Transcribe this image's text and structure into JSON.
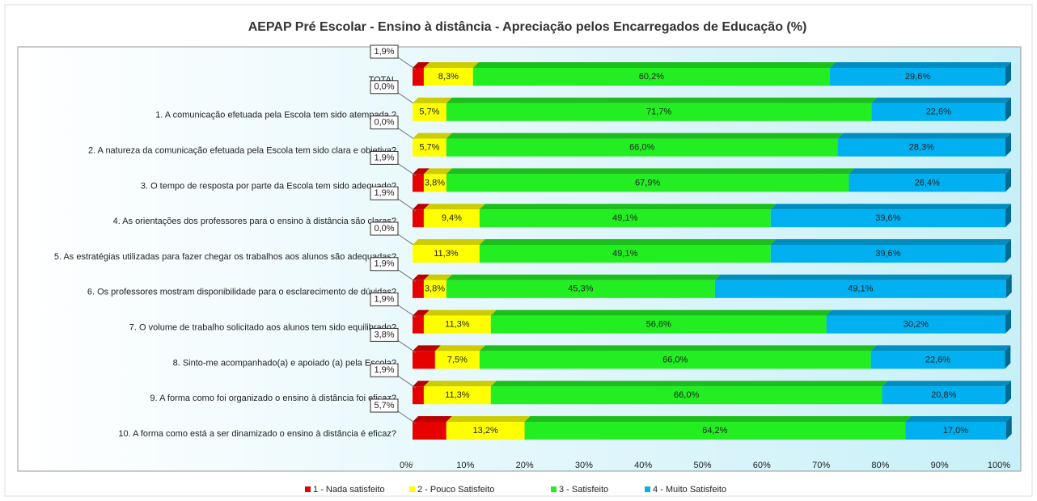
{
  "chart_data": {
    "type": "bar",
    "orientation": "horizontal",
    "stacked": true,
    "title": "AEPAP  Pré Escolar - Ensino à distância - Apreciação  pelos Encarregados de Educação (%)",
    "categories": [
      "TOTAL",
      "1. A comunicação efetuada pela Escola tem sido atempada.?",
      "2. A natureza da comunicação efetuada pela Escola tem sido clara e objetiva?",
      "3. O tempo de resposta por parte da Escola tem sido adequado?",
      "4. As orientações dos professores para o ensino à distância são claras?",
      "5. As estratégias utilizadas para fazer chegar os trabalhos aos alunos são adequadas?",
      "6. Os professores mostram disponibilidade para o esclarecimento de dúvidas?",
      "7. O volume de trabalho solicitado aos alunos tem sido equilibrado?",
      "8. Sinto-me acompanhado(a) e apoiado (a) pela Escola?",
      "9. A forma como foi organizado o ensino à distância foi eficaz?",
      "10. A forma como está a ser dinamizado o ensino à distância é eficaz?"
    ],
    "series": [
      {
        "name": "1 - Nada satisfeito",
        "color": "#e60000",
        "values": [
          1.9,
          0.0,
          0.0,
          1.9,
          1.9,
          0.0,
          1.9,
          1.9,
          3.8,
          1.9,
          5.7
        ],
        "value_labels": [
          "1,9%",
          "0,0%",
          "0,0%",
          "1,9%",
          "1,9%",
          "0,0%",
          "1,9%",
          "1,9%",
          "3,8%",
          "1,9%",
          "5,7%"
        ]
      },
      {
        "name": "2 - Pouco Satisfeito",
        "color": "#ffff00",
        "values": [
          8.3,
          5.7,
          5.7,
          3.8,
          9.4,
          11.3,
          3.8,
          11.3,
          7.5,
          11.3,
          13.2
        ],
        "value_labels": [
          "8,3%",
          "5,7%",
          "5,7%",
          "3,8%",
          "9,4%",
          "11,3%",
          "3,8%",
          "11,3%",
          "7,5%",
          "11,3%",
          "13,2%"
        ]
      },
      {
        "name": "3 - Satisfeito",
        "color": "#22ee22",
        "values": [
          60.2,
          71.7,
          66.0,
          67.9,
          49.1,
          49.1,
          45.3,
          56.6,
          66.0,
          66.0,
          64.2
        ],
        "value_labels": [
          "60,2%",
          "71,7%",
          "66,0%",
          "67,9%",
          "49,1%",
          "49,1%",
          "45,3%",
          "56,6%",
          "66,0%",
          "66,0%",
          "64,2%"
        ]
      },
      {
        "name": "4 - Muito Satisfeito",
        "color": "#00b0f0",
        "values": [
          29.6,
          22.6,
          28.3,
          26.4,
          39.6,
          39.6,
          49.1,
          30.2,
          22.6,
          20.8,
          17.0
        ],
        "value_labels": [
          "29,6%",
          "22,6%",
          "28,3%",
          "26,4%",
          "39,6%",
          "39,6%",
          "49,1%",
          "30,2%",
          "22,6%",
          "20,8%",
          "17,0%"
        ]
      }
    ],
    "xlim": [
      0,
      100
    ],
    "xticks": [
      {
        "value": 0,
        "label": "0%"
      },
      {
        "value": 10,
        "label": "10%"
      },
      {
        "value": 20,
        "label": "20%"
      },
      {
        "value": 30,
        "label": "30%"
      },
      {
        "value": 40,
        "label": "40%"
      },
      {
        "value": 50,
        "label": "50%"
      },
      {
        "value": 60,
        "label": "60%"
      },
      {
        "value": 70,
        "label": "70%"
      },
      {
        "value": 80,
        "label": "80%"
      },
      {
        "value": 90,
        "label": "90%"
      },
      {
        "value": 100,
        "label": "100%"
      }
    ],
    "legend": "bottom"
  }
}
